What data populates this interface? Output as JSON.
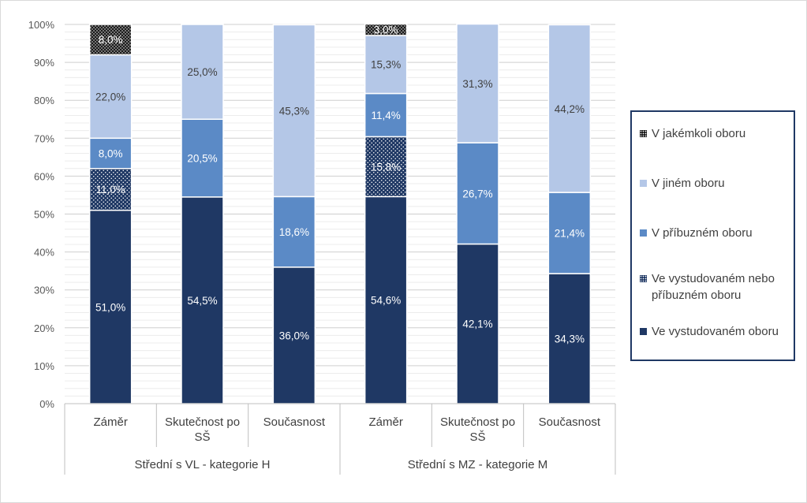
{
  "chart_data": {
    "type": "bar",
    "stacked": true,
    "normalized": true,
    "groups": [
      {
        "label": "Střední s VL - kategorie H",
        "categories": [
          "Záměr",
          "Skutečnost po SŠ",
          "Současnost"
        ]
      },
      {
        "label": "Střední s MZ - kategorie M",
        "categories": [
          "Záměr",
          "Skutečnost po SŠ",
          "Současnost"
        ]
      }
    ],
    "categories": [
      "Záměr",
      "Skutečnost po SŠ",
      "Současnost",
      "Záměr",
      "Skutečnost po SŠ",
      "Současnost"
    ],
    "series": [
      {
        "name": "Ve vystudovaném oboru",
        "color": "#1f3864",
        "pattern": "solid",
        "values": [
          51.0,
          54.5,
          36.0,
          54.6,
          42.1,
          34.3
        ],
        "labels": [
          "51,0%",
          "54,5%",
          "36,0%",
          "54,6%",
          "42,1%",
          "34,3%"
        ]
      },
      {
        "name": "Ve vystudovaném nebo příbuzném oboru",
        "color": "#1f3864",
        "pattern": "dots",
        "values": [
          11.0,
          0,
          0,
          15.8,
          0,
          0
        ],
        "labels": [
          "11,0%",
          "",
          "",
          "15,8%",
          "",
          ""
        ]
      },
      {
        "name": "V příbuzném oboru",
        "color": "#5b8ac6",
        "pattern": "solid",
        "values": [
          8.0,
          20.5,
          18.6,
          11.4,
          26.7,
          21.4
        ],
        "labels": [
          "8,0%",
          "20,5%",
          "18,6%",
          "11,4%",
          "26,7%",
          "21,4%"
        ]
      },
      {
        "name": "V jiném oboru",
        "color": "#b4c7e7",
        "pattern": "solid",
        "values": [
          22.0,
          25.0,
          45.3,
          15.3,
          31.3,
          44.2
        ],
        "labels": [
          "22,0%",
          "25,0%",
          "45,3%",
          "15,3%",
          "31,3%",
          "44,2%"
        ]
      },
      {
        "name": "V jakémkoli oboru",
        "color": "#1f2a3c",
        "pattern": "dense-dots",
        "values": [
          8.0,
          0,
          0,
          3.0,
          0,
          0
        ],
        "labels": [
          "8,0%",
          "",
          "",
          "3,0%",
          "",
          ""
        ]
      }
    ],
    "legend_order": [
      "V jakémkoli oboru",
      "V jiném oboru",
      "V příbuzném oboru",
      "Ve vystudovaném nebo příbuzném oboru",
      "Ve vystudovaném oboru"
    ],
    "y_ticks": [
      "0%",
      "10%",
      "20%",
      "30%",
      "40%",
      "50%",
      "60%",
      "70%",
      "80%",
      "90%",
      "100%"
    ],
    "ylim": [
      0,
      100
    ],
    "grid": true,
    "legend_position": "right"
  }
}
